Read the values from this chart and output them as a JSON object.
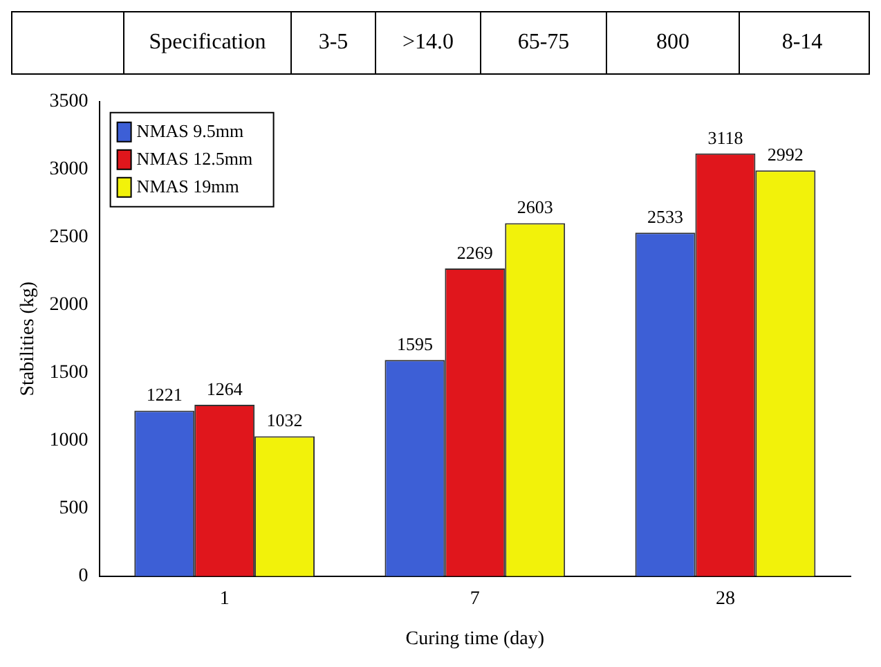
{
  "chart_data": {
    "type": "bar",
    "xlabel": "Curing time (day)",
    "ylabel": "Stabilities (kg)",
    "annotations": [
      "Specification",
      "3-5",
      ">14.0",
      "65-75",
      "800",
      "8-14"
    ],
    "categories": [
      "1",
      "7",
      "28"
    ],
    "series": [
      {
        "name": "NMAS 9.5mm",
        "color": "#3d5fd6",
        "values": [
          1221,
          1595,
          2533
        ]
      },
      {
        "name": "NMAS 12.5mm",
        "color": "#e0161c",
        "values": [
          1264,
          2269,
          3118
        ]
      },
      {
        "name": "NMAS 19mm",
        "color": "#f2f20a",
        "values": [
          1032,
          2603,
          2992
        ]
      }
    ],
    "ylim": [
      0,
      3500
    ],
    "yticks": [
      0,
      500,
      1000,
      1500,
      2000,
      2500,
      3000,
      3500
    ],
    "grid": false,
    "legend": "top left",
    "data_labels": true
  }
}
